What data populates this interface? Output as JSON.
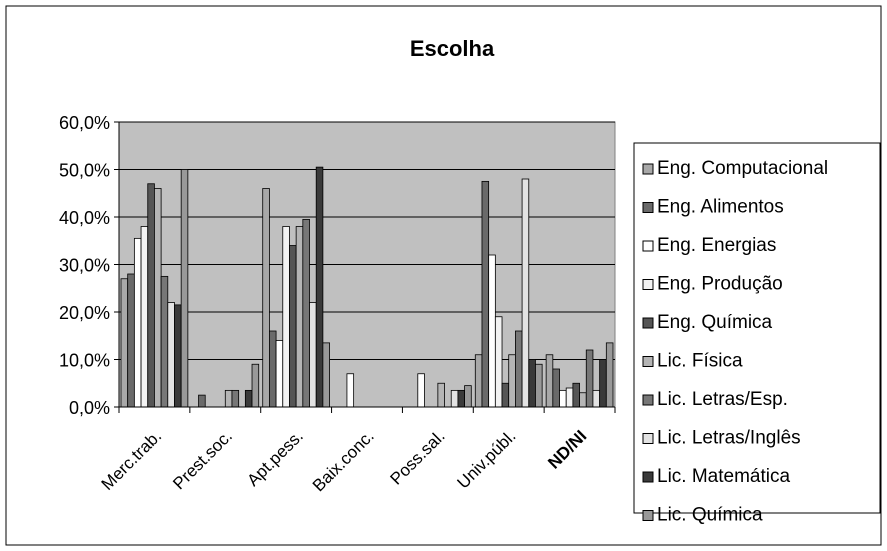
{
  "chart_data": {
    "type": "bar",
    "title": "Escolha",
    "xlabel": "",
    "ylabel": "",
    "ylim": [
      0,
      60
    ],
    "yticks": [
      "0,0%",
      "10,0%",
      "20,0%",
      "30,0%",
      "40,0%",
      "50,0%",
      "60,0%"
    ],
    "grid": true,
    "legend_position": "right",
    "categories": [
      "Merc.trab.",
      "Prest.soc.",
      "Apt.pess.",
      "Baix.conc.",
      "Poss.sal.",
      "Univ.públ.",
      "ND/NI"
    ],
    "series": [
      {
        "name": "Eng. Computacional",
        "color": "#a8a8a8",
        "values": [
          27.0,
          0.0,
          46.0,
          0.0,
          0.0,
          11.0,
          11.0
        ]
      },
      {
        "name": "Eng. Alimentos",
        "color": "#6a6a6a",
        "values": [
          28.0,
          2.5,
          16.0,
          0.0,
          0.0,
          47.5,
          8.0
        ]
      },
      {
        "name": "Eng. Energias",
        "color": "#ffffff",
        "values": [
          35.5,
          0.0,
          14.0,
          7.0,
          7.0,
          32.0,
          3.5
        ]
      },
      {
        "name": "Eng. Produção",
        "color": "#f2f2f2",
        "values": [
          38.0,
          0.0,
          38.0,
          0.0,
          0.0,
          19.0,
          4.0
        ]
      },
      {
        "name": "Eng. Química",
        "color": "#555555",
        "values": [
          47.0,
          0.0,
          34.0,
          0.0,
          0.0,
          5.0,
          5.0
        ]
      },
      {
        "name": "Lic. Física",
        "color": "#b5b5b5",
        "values": [
          46.0,
          3.5,
          38.0,
          0.0,
          5.0,
          11.0,
          3.0
        ]
      },
      {
        "name": "Lic. Letras/Esp.",
        "color": "#777777",
        "values": [
          27.5,
          3.5,
          39.5,
          0.0,
          0.0,
          16.0,
          12.0
        ]
      },
      {
        "name": "Lic. Letras/Inglês",
        "color": "#e3e3e3",
        "values": [
          22.0,
          0.0,
          22.0,
          0.0,
          3.5,
          48.0,
          3.5
        ]
      },
      {
        "name": "Lic. Matemática",
        "color": "#3a3a3a",
        "values": [
          21.5,
          3.5,
          50.5,
          0.0,
          3.5,
          10.0,
          10.0
        ]
      },
      {
        "name": "Lic. Química",
        "color": "#999999",
        "values": [
          50.0,
          9.0,
          13.5,
          0.0,
          4.5,
          9.0,
          13.5
        ]
      }
    ]
  }
}
